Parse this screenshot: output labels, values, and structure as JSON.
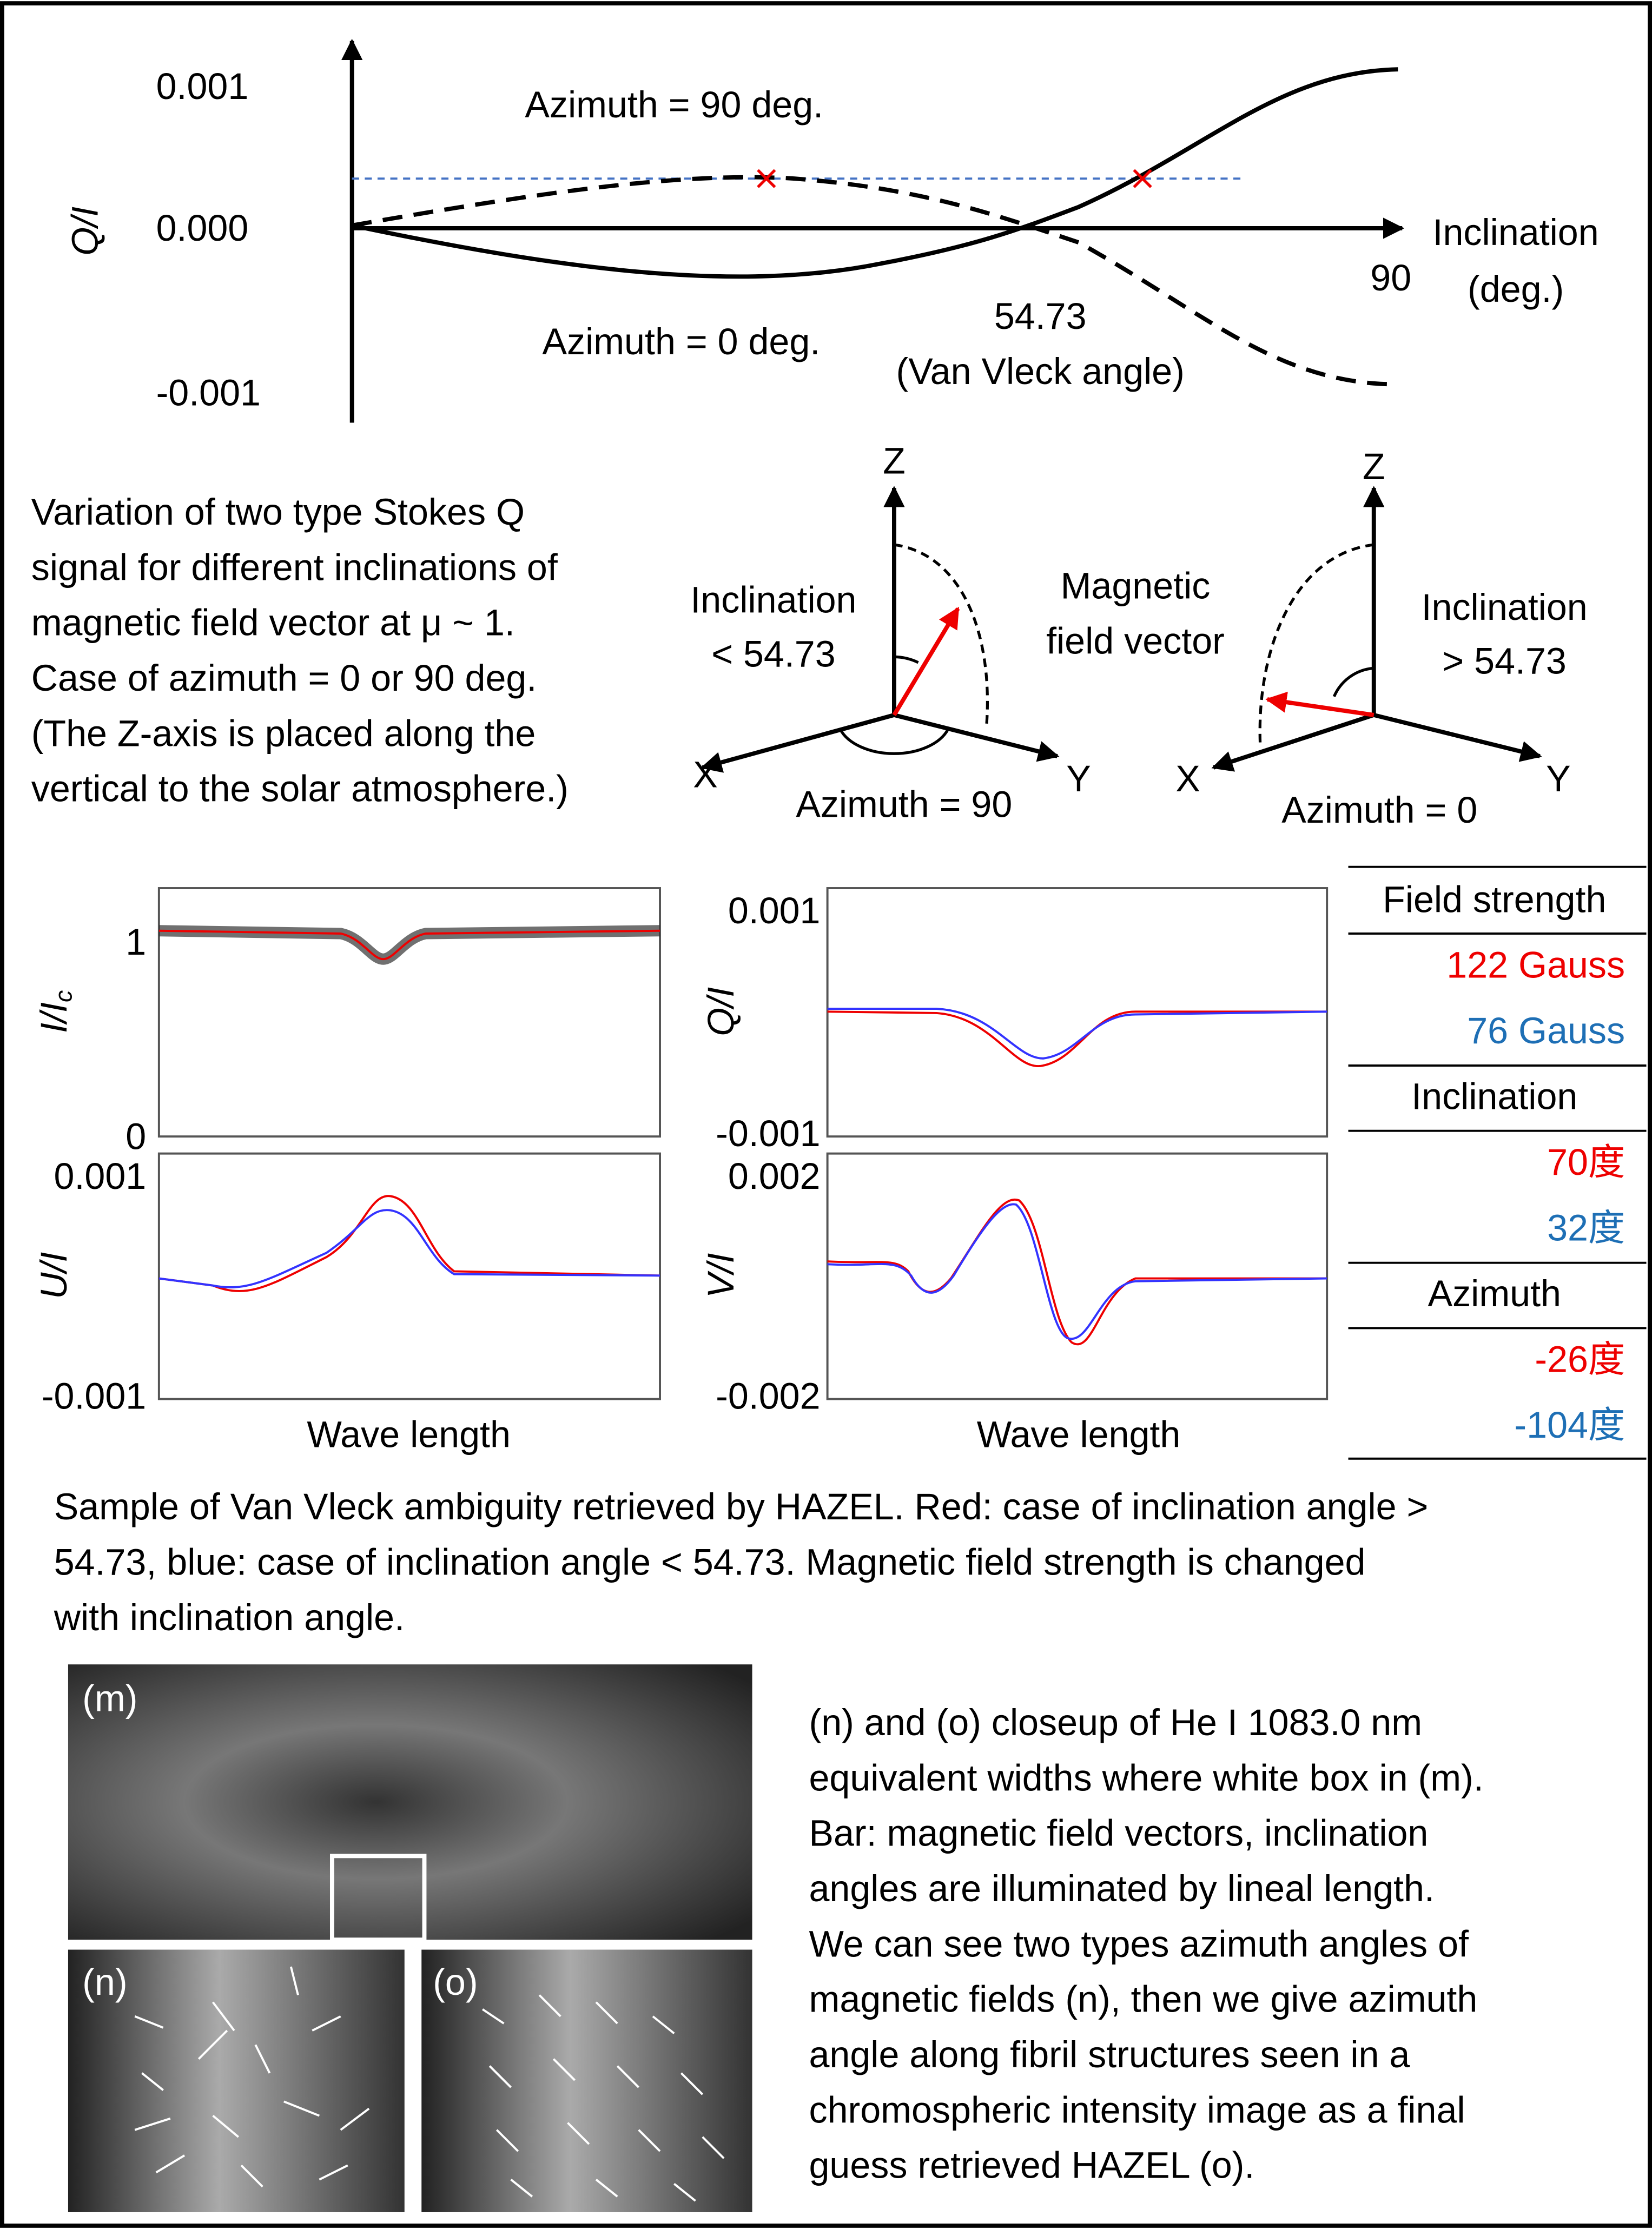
{
  "top_diagram": {
    "y_label": "Q/I",
    "y_ticks": [
      "0.001",
      "0.000",
      "-0.001"
    ],
    "azimuth_90": "Azimuth = 90 deg.",
    "azimuth_0": "Azimuth = 0 deg.",
    "x_label": [
      "Inclination",
      "(deg.)"
    ],
    "x_tick": "90",
    "van_vleck": [
      "54.73",
      "(Van Vleck angle)"
    ]
  },
  "description": [
    "Variation of two type Stokes Q",
    "signal for different inclinations of",
    "magnetic field vector at μ ~ 1.",
    "Case of azimuth = 0 or 90 deg.",
    "(The Z-axis is placed along the",
    "vertical to the solar atmosphere.)"
  ],
  "vector_left": {
    "z": "Z",
    "x": "X",
    "y": "Y",
    "inclination": [
      "Inclination",
      "< 54.73"
    ],
    "azimuth": "Azimuth = 90"
  },
  "vector_center": [
    "Magnetic",
    "field vector"
  ],
  "vector_right": {
    "z": "Z",
    "x": "X",
    "y": "Y",
    "inclination": [
      "Inclination",
      "> 54.73"
    ],
    "azimuth": "Azimuth = 0"
  },
  "panels": {
    "i": {
      "label": "I/I",
      "label_sub": "c",
      "ticks": [
        "1",
        "0"
      ]
    },
    "q": {
      "label": "Q/I",
      "ticks": [
        "0.001",
        "-0.001"
      ]
    },
    "u": {
      "label": "U/I",
      "ticks": [
        "0.001",
        "-0.001"
      ],
      "x_label": "Wave length"
    },
    "v": {
      "label": "V/I",
      "ticks": [
        "0.002",
        "-0.002"
      ],
      "x_label": "Wave length"
    }
  },
  "table": [
    "Field strength",
    "122 Gauss",
    "76 Gauss",
    "Inclination",
    "70度",
    "32度",
    "Azimuth",
    "-26度",
    "-104度"
  ],
  "caption": [
    "Sample of Van Vleck ambiguity retrieved by HAZEL. Red: case of inclination angle >",
    "54.73, blue: case of inclination angle < 54.73. Magnetic field strength is changed",
    "with inclination angle."
  ],
  "images": {
    "m": "(m)",
    "n": "(n)",
    "o": "(o)"
  },
  "closeup_text": [
    "(n) and (o) closeup of He I 1083.0 nm",
    "equivalent widths where white box in (m).",
    "Bar: magnetic field vectors, inclination",
    "angles are illuminated by lineal length.",
    "We can see two types azimuth angles of",
    "magnetic fields (n), then we give azimuth",
    "angle along fibril structures seen in a",
    "chromospheric intensity image as a final",
    "guess retrieved HAZEL (o)."
  ]
}
